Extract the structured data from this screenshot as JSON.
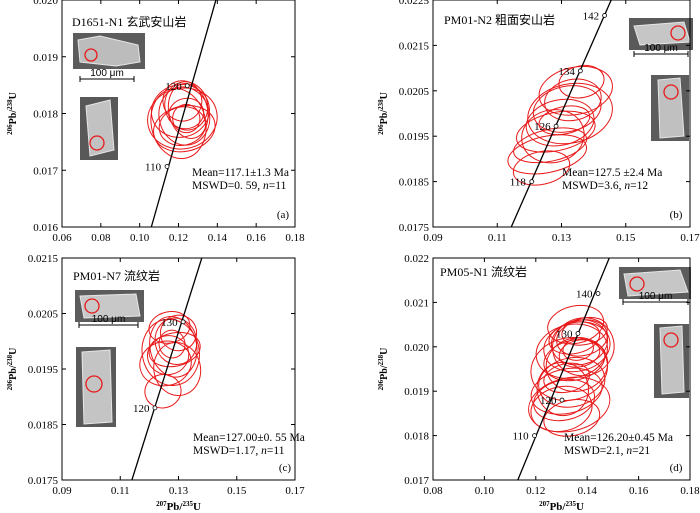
{
  "chart_data": [
    {
      "type": "scatter",
      "title": "D1651-N1 玄武安山岩",
      "panel_tag": "(a)",
      "xlim": [
        0.06,
        0.18
      ],
      "ylim": [
        0.016,
        0.0205
      ],
      "xticks": [
        "0.06",
        "0.08",
        "0.10",
        "0.12",
        "0.14",
        "0.16",
        "0.18"
      ],
      "yticks": [
        "0.016",
        "0.017",
        "0.018",
        "0.019",
        "0.020"
      ],
      "ylabel": {
        "pre": "206",
        "mid": "Pb/",
        "sup": "238",
        "post": "U"
      },
      "xlabel": null,
      "mean_text": "Mean=117.1±1.3 Ma",
      "mswd_text": "MSWD=0. 59, ",
      "n_text": "n",
      "n_value": "=11",
      "concordia_ages": [
        {
          "age": 110,
          "label": "110",
          "x": 0.1141,
          "y": 0.0172
        },
        {
          "age": 120,
          "label": "120",
          "x": 0.1245,
          "y": 0.0188
        }
      ],
      "concordia_line": [
        [
          0.106,
          0.016
        ],
        [
          0.14,
          0.0206
        ]
      ],
      "ellipses": [
        {
          "cx": 0.122,
          "cy": 0.01815,
          "rx": 0.018,
          "ry": 0.0006
        },
        {
          "cx": 0.121,
          "cy": 0.0183,
          "rx": 0.015,
          "ry": 0.00052
        },
        {
          "cx": 0.123,
          "cy": 0.0182,
          "rx": 0.013,
          "ry": 0.00058
        },
        {
          "cx": 0.124,
          "cy": 0.0184,
          "rx": 0.011,
          "ry": 0.00048
        },
        {
          "cx": 0.122,
          "cy": 0.018,
          "rx": 0.012,
          "ry": 0.00038
        },
        {
          "cx": 0.124,
          "cy": 0.01825,
          "rx": 0.009,
          "ry": 0.0003
        },
        {
          "cx": 0.12,
          "cy": 0.01805,
          "rx": 0.014,
          "ry": 0.0007
        },
        {
          "cx": 0.125,
          "cy": 0.0183,
          "rx": 0.01,
          "ry": 0.00055
        },
        {
          "cx": 0.123,
          "cy": 0.01795,
          "rx": 0.016,
          "ry": 0.00045
        },
        {
          "cx": 0.122,
          "cy": 0.0185,
          "rx": 0.01,
          "ry": 0.0004
        },
        {
          "cx": 0.124,
          "cy": 0.01815,
          "rx": 0.007,
          "ry": 0.00028
        }
      ],
      "scale_label": "100 μm"
    },
    {
      "type": "scatter",
      "title": "PM01-N2 粗面安山岩",
      "panel_tag": "(b)",
      "xlim": [
        0.09,
        0.18
      ],
      "ylim": [
        0.0175,
        0.0225
      ],
      "xticks": [
        "0.09",
        "0.11",
        "0.13",
        "0.15",
        "0.17"
      ],
      "yticks": [
        "0.0175",
        "0.0185",
        "0.0195",
        "0.0205",
        "0.0215",
        "0.0225"
      ],
      "ylabel": {
        "pre": "206",
        "mid": "Pb/",
        "sup": "238",
        "post": "U"
      },
      "xlabel": null,
      "mean_text": "Mean=127.5 ±2.4 Ma",
      "mswd_text": "MSWD=3.6, ",
      "n_text": "n",
      "n_value": "=12",
      "concordia_ages": [
        {
          "age": 118,
          "label": "118",
          "x": 0.1246,
          "y": 0.0185
        },
        {
          "age": 126,
          "label": "126",
          "x": 0.1331,
          "y": 0.01972
        },
        {
          "age": 134,
          "label": "134",
          "x": 0.1416,
          "y": 0.02094
        },
        {
          "age": 142,
          "label": "142",
          "x": 0.1501,
          "y": 0.02216
        }
      ],
      "concordia_line": [
        [
          0.116,
          0.0173
        ],
        [
          0.1545,
          0.0228
        ]
      ],
      "ellipses": [
        {
          "cx": 0.13,
          "cy": 0.0191,
          "rx": 0.014,
          "ry": 0.0004
        },
        {
          "cx": 0.133,
          "cy": 0.0196,
          "rx": 0.014,
          "ry": 0.00042
        },
        {
          "cx": 0.1345,
          "cy": 0.0198,
          "rx": 0.012,
          "ry": 0.0005
        },
        {
          "cx": 0.137,
          "cy": 0.0201,
          "rx": 0.012,
          "ry": 0.0005
        },
        {
          "cx": 0.139,
          "cy": 0.0203,
          "rx": 0.01,
          "ry": 0.00045
        },
        {
          "cx": 0.131,
          "cy": 0.0193,
          "rx": 0.013,
          "ry": 0.00035
        },
        {
          "cx": 0.138,
          "cy": 0.02,
          "rx": 0.015,
          "ry": 0.00065
        },
        {
          "cx": 0.132,
          "cy": 0.0195,
          "rx": 0.011,
          "ry": 0.00058
        },
        {
          "cx": 0.14,
          "cy": 0.0205,
          "rx": 0.013,
          "ry": 0.00052
        },
        {
          "cx": 0.128,
          "cy": 0.0188,
          "rx": 0.01,
          "ry": 0.00036
        },
        {
          "cx": 0.136,
          "cy": 0.01985,
          "rx": 0.009,
          "ry": 0.0003
        },
        {
          "cx": 0.142,
          "cy": 0.0207,
          "rx": 0.008,
          "ry": 0.00035
        }
      ],
      "scale_label": "100 μm"
    },
    {
      "type": "scatter",
      "title": "PM01-N7 流纹岩",
      "panel_tag": "(c)",
      "xlim": [
        0.09,
        0.18
      ],
      "ylim": [
        0.0175,
        0.0215
      ],
      "xticks": [
        "0.09",
        "0.11",
        "0.13",
        "0.15",
        "0.17"
      ],
      "yticks": [
        "0.0175",
        "0.0185",
        "0.0195",
        "0.0205",
        "0.0215"
      ],
      "ylabel": {
        "pre": "206",
        "mid": "Pb/",
        "sup": "238",
        "post": "U"
      },
      "xlabel": {
        "pre": "207",
        "mid": "Pb/",
        "sup": "235",
        "post": "U"
      },
      "mean_text": "Mean=127.00±0. 55 Ma",
      "mswd_text": "MSWD=1.17, ",
      "n_text": "n",
      "n_value": "=11",
      "concordia_ages": [
        {
          "age": 120,
          "label": "120",
          "x": 0.1259,
          "y": 0.0188
        },
        {
          "age": 130,
          "label": "130",
          "x": 0.1368,
          "y": 0.02035
        }
      ],
      "concordia_line": [
        [
          0.117,
          0.0175
        ],
        [
          0.144,
          0.0215
        ]
      ],
      "ellipses": [
        {
          "cx": 0.132,
          "cy": 0.0198,
          "rx": 0.011,
          "ry": 0.0006
        },
        {
          "cx": 0.133,
          "cy": 0.0199,
          "rx": 0.009,
          "ry": 0.00055
        },
        {
          "cx": 0.134,
          "cy": 0.02,
          "rx": 0.008,
          "ry": 0.00042
        },
        {
          "cx": 0.131,
          "cy": 0.01975,
          "rx": 0.008,
          "ry": 0.00035
        },
        {
          "cx": 0.1335,
          "cy": 0.01985,
          "rx": 0.01,
          "ry": 0.0003
        },
        {
          "cx": 0.13,
          "cy": 0.0196,
          "rx": 0.01,
          "ry": 0.0004
        },
        {
          "cx": 0.135,
          "cy": 0.02015,
          "rx": 0.007,
          "ry": 0.00032
        },
        {
          "cx": 0.129,
          "cy": 0.0191,
          "rx": 0.007,
          "ry": 0.0003
        },
        {
          "cx": 0.1325,
          "cy": 0.01995,
          "rx": 0.005,
          "ry": 0.00025
        },
        {
          "cx": 0.1345,
          "cy": 0.0195,
          "rx": 0.009,
          "ry": 0.00048
        },
        {
          "cx": 0.1315,
          "cy": 0.02025,
          "rx": 0.008,
          "ry": 0.00028
        }
      ],
      "scale_label": "100 μm"
    },
    {
      "type": "scatter",
      "title": "PM05-N1 流纹岩",
      "panel_tag": "(d)",
      "xlim": [
        0.08,
        0.18
      ],
      "ylim": [
        0.017,
        0.022
      ],
      "xticks": [
        "0.08",
        "0.10",
        "0.12",
        "0.14",
        "0.16",
        "0.18"
      ],
      "yticks": [
        "0.017",
        "0.018",
        "0.019",
        "0.020",
        "0.021",
        "0.022"
      ],
      "ylabel": {
        "pre": "206",
        "mid": "Pb/",
        "sup": "238",
        "post": "U"
      },
      "xlabel": {
        "pre": "207",
        "mid": "Pb/",
        "sup": "235",
        "post": "U"
      },
      "mean_text": "Mean=126.20±0.45 Ma",
      "mswd_text": "MSWD=2.1, ",
      "n_text": "n",
      "n_value": "=21",
      "concordia_ages": [
        {
          "age": 110,
          "label": "110",
          "x": 0.1195,
          "y": 0.018
        },
        {
          "age": 120,
          "label": "120",
          "x": 0.1302,
          "y": 0.0188
        },
        {
          "age": 130,
          "label": "130",
          "x": 0.1364,
          "y": 0.0203
        },
        {
          "age": 140,
          "label": "140",
          "x": 0.1442,
          "y": 0.0212
        }
      ],
      "concordia_line": [
        [
          0.113,
          0.017
        ],
        [
          0.15,
          0.0222
        ]
      ],
      "ellipses": [
        {
          "cx": 0.134,
          "cy": 0.0199,
          "rx": 0.014,
          "ry": 0.0006
        },
        {
          "cx": 0.136,
          "cy": 0.02,
          "rx": 0.013,
          "ry": 0.00055
        },
        {
          "cx": 0.137,
          "cy": 0.0201,
          "rx": 0.011,
          "ry": 0.0005
        },
        {
          "cx": 0.135,
          "cy": 0.0197,
          "rx": 0.012,
          "ry": 0.00045
        },
        {
          "cx": 0.138,
          "cy": 0.0202,
          "rx": 0.01,
          "ry": 0.0004
        },
        {
          "cx": 0.133,
          "cy": 0.0195,
          "rx": 0.015,
          "ry": 0.0007
        },
        {
          "cx": 0.136,
          "cy": 0.0196,
          "rx": 0.012,
          "ry": 0.0006
        },
        {
          "cx": 0.132,
          "cy": 0.019,
          "rx": 0.014,
          "ry": 0.0005
        },
        {
          "cx": 0.134,
          "cy": 0.0192,
          "rx": 0.013,
          "ry": 0.00055
        },
        {
          "cx": 0.131,
          "cy": 0.0188,
          "rx": 0.012,
          "ry": 0.00045
        },
        {
          "cx": 0.13,
          "cy": 0.0186,
          "rx": 0.012,
          "ry": 0.0005
        },
        {
          "cx": 0.133,
          "cy": 0.0187,
          "rx": 0.016,
          "ry": 0.0006
        },
        {
          "cx": 0.137,
          "cy": 0.01985,
          "rx": 0.008,
          "ry": 0.0003
        },
        {
          "cx": 0.135,
          "cy": 0.0202,
          "rx": 0.01,
          "ry": 0.00035
        },
        {
          "cx": 0.139,
          "cy": 0.02035,
          "rx": 0.009,
          "ry": 0.0003
        },
        {
          "cx": 0.132,
          "cy": 0.0193,
          "rx": 0.009,
          "ry": 0.00032
        },
        {
          "cx": 0.1355,
          "cy": 0.0205,
          "rx": 0.011,
          "ry": 0.00042
        },
        {
          "cx": 0.134,
          "cy": 0.0184,
          "rx": 0.011,
          "ry": 0.0004
        },
        {
          "cx": 0.1365,
          "cy": 0.01995,
          "rx": 0.006,
          "ry": 0.00025
        },
        {
          "cx": 0.1385,
          "cy": 0.02,
          "rx": 0.012,
          "ry": 0.00065
        },
        {
          "cx": 0.1305,
          "cy": 0.01905,
          "rx": 0.01,
          "ry": 0.0006
        }
      ],
      "scale_label": "100 μm"
    }
  ]
}
